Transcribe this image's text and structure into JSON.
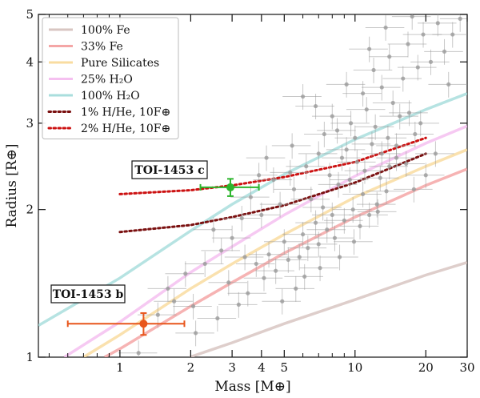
{
  "chart_data": {
    "type": "scatter",
    "xlabel": "Mass [M⊕]",
    "ylabel": "Radius [R⊕]",
    "xscale": "log",
    "yscale": "log",
    "xlim": [
      0.45,
      30
    ],
    "ylim": [
      1,
      5
    ],
    "xticks": [
      {
        "value": 1,
        "label": "1"
      },
      {
        "value": 2,
        "label": "2"
      },
      {
        "value": 3,
        "label": "3"
      },
      {
        "value": 4,
        "label": "4"
      },
      {
        "value": 5,
        "label": "5"
      },
      {
        "value": 10,
        "label": "10"
      },
      {
        "value": 20,
        "label": "20"
      },
      {
        "value": 30,
        "label": "30"
      }
    ],
    "yticks": [
      {
        "value": 1,
        "label": "1"
      },
      {
        "value": 2,
        "label": "2"
      },
      {
        "value": 3,
        "label": "3"
      },
      {
        "value": 4,
        "label": "4"
      },
      {
        "value": 5,
        "label": "5"
      }
    ],
    "legend": {
      "placement": "top-left",
      "entries": [
        {
          "label": "100% Fe",
          "color": "#d8c6c2",
          "style": "solid"
        },
        {
          "label": "33% Fe",
          "color": "#f4a6a6",
          "style": "solid"
        },
        {
          "label": "Pure Silicates",
          "color": "#f9dca0",
          "style": "solid"
        },
        {
          "label": "25% H₂O",
          "color": "#f5c0f0",
          "style": "solid"
        },
        {
          "label": "100% H₂O",
          "color": "#a9dedd",
          "style": "solid"
        },
        {
          "label": "1% H/He, 10F⊕",
          "color": "#7a1010",
          "style": "dotted"
        },
        {
          "label": "2% H/He, 10F⊕",
          "color": "#cc1111",
          "style": "dotted"
        }
      ]
    },
    "composition_curves": [
      {
        "name": "100% Fe",
        "color": "#d8c6c2",
        "style": "solid",
        "points": [
          [
            1.98,
            1.0
          ],
          [
            3.0,
            1.07
          ],
          [
            5.0,
            1.17
          ],
          [
            10.0,
            1.31
          ],
          [
            20.0,
            1.47
          ],
          [
            30.0,
            1.56
          ]
        ]
      },
      {
        "name": "33% Fe",
        "color": "#f4a6a6",
        "style": "solid",
        "points": [
          [
            0.86,
            1.0
          ],
          [
            1.0,
            1.04
          ],
          [
            2.0,
            1.27
          ],
          [
            3.0,
            1.42
          ],
          [
            5.0,
            1.63
          ],
          [
            10.0,
            1.93
          ],
          [
            20.0,
            2.24
          ],
          [
            30.0,
            2.42
          ]
        ]
      },
      {
        "name": "Pure Silicates",
        "color": "#f9dca0",
        "style": "solid",
        "points": [
          [
            0.7,
            1.0
          ],
          [
            1.0,
            1.11
          ],
          [
            2.0,
            1.38
          ],
          [
            3.0,
            1.55
          ],
          [
            5.0,
            1.78
          ],
          [
            10.0,
            2.12
          ],
          [
            20.0,
            2.45
          ],
          [
            30.0,
            2.65
          ]
        ]
      },
      {
        "name": "25% H₂O",
        "color": "#f5c0f0",
        "style": "solid",
        "points": [
          [
            0.58,
            1.0
          ],
          [
            1.0,
            1.18
          ],
          [
            2.0,
            1.49
          ],
          [
            3.0,
            1.68
          ],
          [
            5.0,
            1.95
          ],
          [
            10.0,
            2.34
          ],
          [
            20.0,
            2.73
          ],
          [
            30.0,
            2.96
          ]
        ]
      },
      {
        "name": "100% H₂O",
        "color": "#a9dedd",
        "style": "solid",
        "points": [
          [
            0.45,
            1.16
          ],
          [
            1.0,
            1.45
          ],
          [
            2.0,
            1.81
          ],
          [
            3.0,
            2.05
          ],
          [
            5.0,
            2.36
          ],
          [
            10.0,
            2.78
          ],
          [
            20.0,
            3.2
          ],
          [
            30.0,
            3.45
          ]
        ]
      },
      {
        "name": "1% H/He, 10F⊕",
        "color": "#7a1010",
        "style": "dotted",
        "points": [
          [
            1.0,
            1.8
          ],
          [
            2.0,
            1.86
          ],
          [
            3.0,
            1.93
          ],
          [
            5.0,
            2.04
          ],
          [
            10.0,
            2.27
          ],
          [
            20.0,
            2.6
          ]
        ]
      },
      {
        "name": "2% H/He, 10F⊕",
        "color": "#cc1111",
        "style": "dotted",
        "points": [
          [
            1.0,
            2.15
          ],
          [
            2.0,
            2.19
          ],
          [
            3.0,
            2.24
          ],
          [
            5.0,
            2.33
          ],
          [
            10.0,
            2.5
          ],
          [
            20.0,
            2.8
          ]
        ]
      }
    ],
    "highlighted_planets": [
      {
        "label": "TOI-1453 b",
        "color": "#e8561c",
        "mass": 1.26,
        "mass_err": [
          0.66,
          0.62
        ],
        "radius": 1.17,
        "radius_err": [
          0.06,
          0.06
        ]
      },
      {
        "label": "TOI-1453 c",
        "color": "#2db52d",
        "mass": 2.95,
        "mass_err": [
          0.75,
          0.95
        ],
        "radius": 2.22,
        "radius_err": [
          0.09,
          0.09
        ]
      }
    ],
    "background_planets": {
      "color": "#9b9b9b",
      "points": [
        [
          2.1,
          1.12
        ],
        [
          2.6,
          1.2
        ],
        [
          3.2,
          1.28
        ],
        [
          3.5,
          1.35
        ],
        [
          2.9,
          1.42
        ],
        [
          4.1,
          1.45
        ],
        [
          4.6,
          1.5
        ],
        [
          3.8,
          1.55
        ],
        [
          5.2,
          1.58
        ],
        [
          4.3,
          1.62
        ],
        [
          5.8,
          1.6
        ],
        [
          6.3,
          1.67
        ],
        [
          5.0,
          1.72
        ],
        [
          7.0,
          1.7
        ],
        [
          6.0,
          1.78
        ],
        [
          7.6,
          1.82
        ],
        [
          8.2,
          1.75
        ],
        [
          6.8,
          1.88
        ],
        [
          9.0,
          1.9
        ],
        [
          8.0,
          1.95
        ],
        [
          9.8,
          2.0
        ],
        [
          7.3,
          2.02
        ],
        [
          10.5,
          1.85
        ],
        [
          11.5,
          1.95
        ],
        [
          12.4,
          2.05
        ],
        [
          10.8,
          2.15
        ],
        [
          6.5,
          2.1
        ],
        [
          5.5,
          2.2
        ],
        [
          4.8,
          2.05
        ],
        [
          4.0,
          1.95
        ],
        [
          3.6,
          2.12
        ],
        [
          3.3,
          1.92
        ],
        [
          2.7,
          1.65
        ],
        [
          2.3,
          1.55
        ],
        [
          1.9,
          1.48
        ],
        [
          1.6,
          1.38
        ],
        [
          1.45,
          1.22
        ],
        [
          1.7,
          1.3
        ],
        [
          2.5,
          1.82
        ],
        [
          3.0,
          1.75
        ],
        [
          8.5,
          2.25
        ],
        [
          9.5,
          2.3
        ],
        [
          7.8,
          2.35
        ],
        [
          11.0,
          2.4
        ],
        [
          12.8,
          2.32
        ],
        [
          14.0,
          2.45
        ],
        [
          10.2,
          2.5
        ],
        [
          8.8,
          2.55
        ],
        [
          13.0,
          2.6
        ],
        [
          15.0,
          2.55
        ],
        [
          16.5,
          2.48
        ],
        [
          9.2,
          2.65
        ],
        [
          11.8,
          2.72
        ],
        [
          10.0,
          2.8
        ],
        [
          7.0,
          2.6
        ],
        [
          6.2,
          2.45
        ],
        [
          5.3,
          2.38
        ],
        [
          4.5,
          2.3
        ],
        [
          13.8,
          2.8
        ],
        [
          12.2,
          2.95
        ],
        [
          9.6,
          3.0
        ],
        [
          8.4,
          2.9
        ],
        [
          15.5,
          3.1
        ],
        [
          11.2,
          3.2
        ],
        [
          14.5,
          3.3
        ],
        [
          17.0,
          3.15
        ],
        [
          19.0,
          3.0
        ],
        [
          8.0,
          3.1
        ],
        [
          6.8,
          3.25
        ],
        [
          10.8,
          3.45
        ],
        [
          13.0,
          3.55
        ],
        [
          16.0,
          3.7
        ],
        [
          12.0,
          3.85
        ],
        [
          9.2,
          3.6
        ],
        [
          18.5,
          3.9
        ],
        [
          14.0,
          4.1
        ],
        [
          21.0,
          4.0
        ],
        [
          11.5,
          4.25
        ],
        [
          16.8,
          4.35
        ],
        [
          24.0,
          4.2
        ],
        [
          19.5,
          4.55
        ],
        [
          13.5,
          4.7
        ],
        [
          22.5,
          4.8
        ],
        [
          26.0,
          4.55
        ],
        [
          28.0,
          4.9
        ],
        [
          17.5,
          4.95
        ],
        [
          25.0,
          3.6
        ],
        [
          20.0,
          2.35
        ],
        [
          22.0,
          2.6
        ],
        [
          17.8,
          2.2
        ],
        [
          6.0,
          3.4
        ],
        [
          5.4,
          2.7
        ],
        [
          7.4,
          2.85
        ],
        [
          4.2,
          2.55
        ],
        [
          3.9,
          2.35
        ],
        [
          18.0,
          2.85
        ],
        [
          15.0,
          2.7
        ],
        [
          13.6,
          2.18
        ],
        [
          12.5,
          1.98
        ],
        [
          9.9,
          1.72
        ],
        [
          8.6,
          1.6
        ],
        [
          7.1,
          1.52
        ],
        [
          6.1,
          1.46
        ],
        [
          5.6,
          1.38
        ],
        [
          4.9,
          1.3
        ],
        [
          3.4,
          1.6
        ],
        [
          2.05,
          1.27
        ],
        [
          1.2,
          1.02
        ]
      ]
    }
  }
}
